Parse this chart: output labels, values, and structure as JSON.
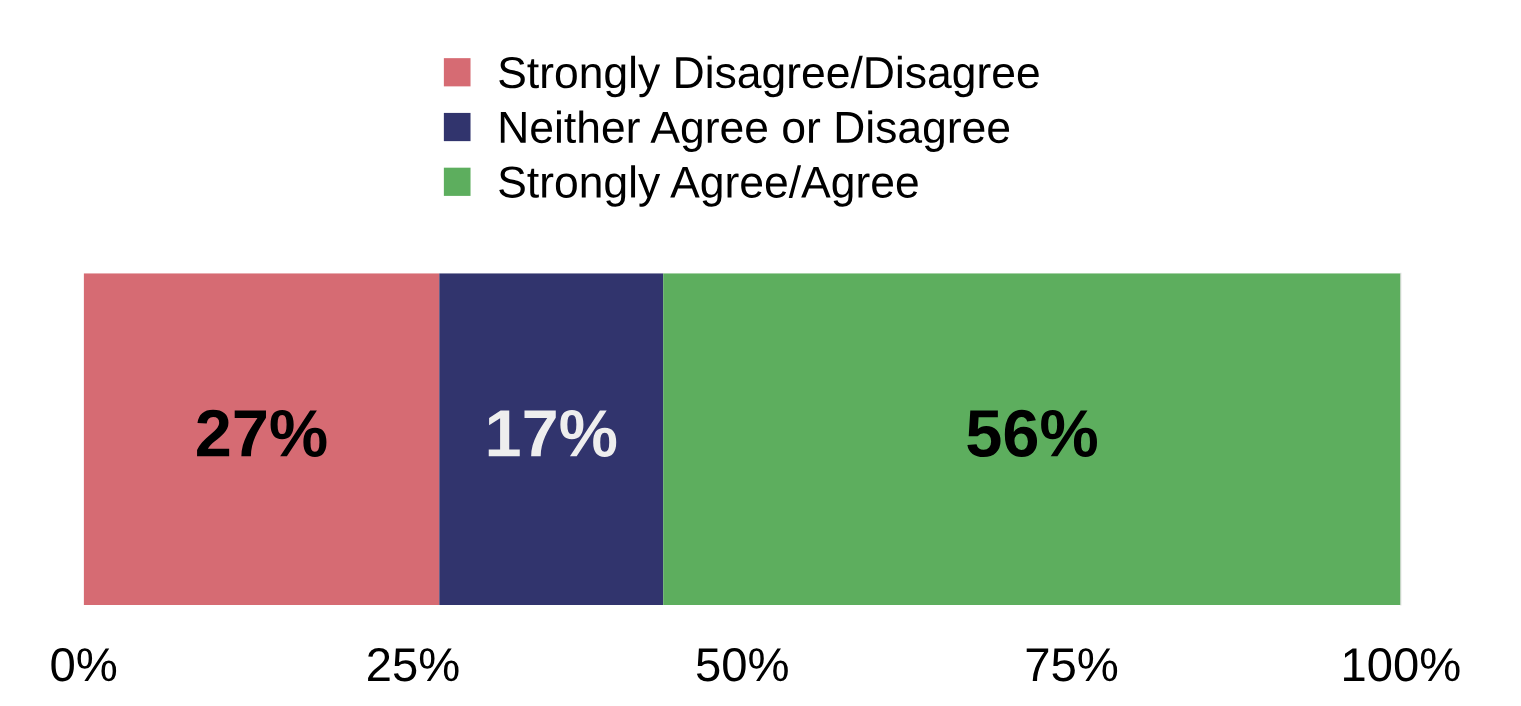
{
  "chart_data": {
    "type": "bar",
    "orientation": "horizontal",
    "stacked": true,
    "categories": [
      null
    ],
    "series": [
      {
        "name": "Strongly Disagree/Disagree",
        "color": "#d66b73",
        "values": [
          27
        ]
      },
      {
        "name": "Neither Agree or Disagree",
        "color": "#31346d",
        "values": [
          17
        ]
      },
      {
        "name": "Strongly Agree/Agree",
        "color": "#5dae5e",
        "values": [
          56
        ]
      }
    ],
    "value_labels": [
      [
        "27%"
      ],
      [
        "17%"
      ],
      [
        "56%"
      ]
    ],
    "xlim": [
      0,
      100
    ],
    "xticks": [
      {
        "value": 0,
        "label": "0%"
      },
      {
        "value": 25,
        "label": "25%"
      },
      {
        "value": 50,
        "label": "50%"
      },
      {
        "value": 75,
        "label": "75%"
      },
      {
        "value": 100,
        "label": "100%"
      }
    ],
    "tick_labels": "x",
    "grid": false,
    "legend": "top"
  }
}
